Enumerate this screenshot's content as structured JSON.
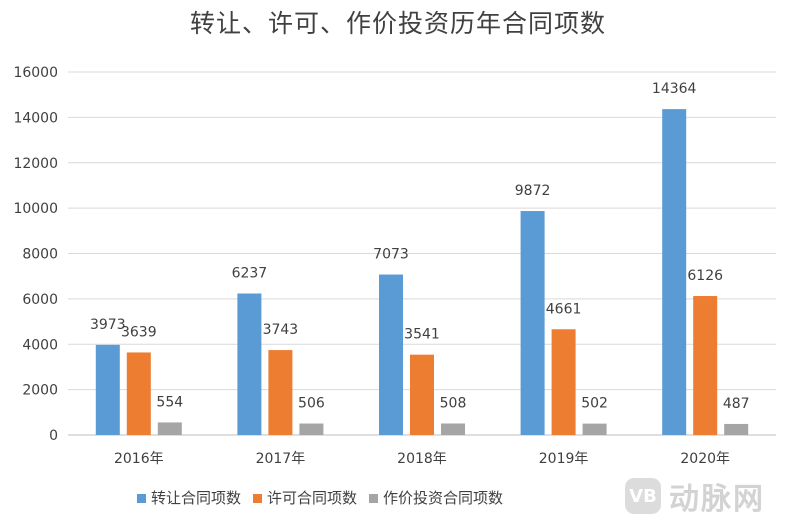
{
  "title": "转让、许可、作价投资历年合同项数",
  "watermark": {
    "badge": "VB",
    "text": "动脉网"
  },
  "chart_data": {
    "type": "bar",
    "title": "转让、许可、作价投资历年合同项数",
    "categories": [
      "2016年",
      "2017年",
      "2018年",
      "2019年",
      "2020年"
    ],
    "series": [
      {
        "name": "转让合同项数",
        "color": "#5b9bd5",
        "values": [
          3973,
          6237,
          7073,
          9872,
          14364
        ]
      },
      {
        "name": "许可合同项数",
        "color": "#ed7d31",
        "values": [
          3639,
          3743,
          3541,
          4661,
          6126
        ]
      },
      {
        "name": "作价投资合同项数",
        "color": "#a5a5a5",
        "values": [
          554,
          506,
          508,
          502,
          487
        ]
      }
    ],
    "yticks": [
      "0",
      "2000",
      "4000",
      "6000",
      "8000",
      "10000",
      "12000",
      "14000",
      "16000"
    ],
    "ylim": [
      0,
      16000
    ],
    "grid": true,
    "legend_position": "bottom",
    "data_labels": true
  }
}
